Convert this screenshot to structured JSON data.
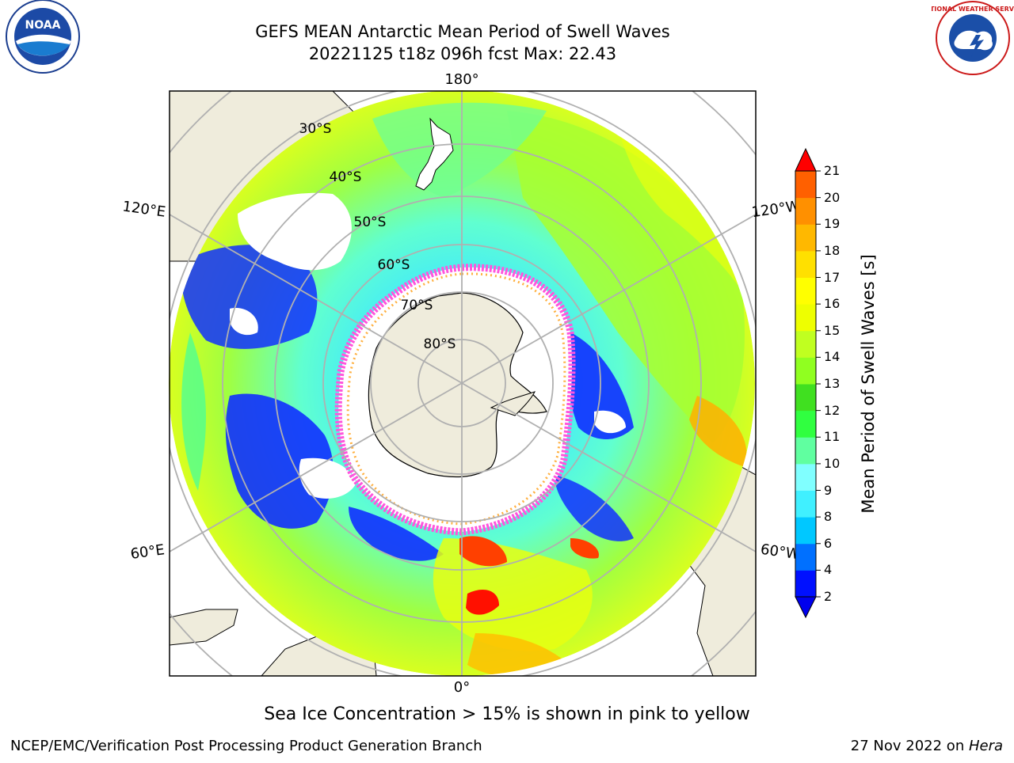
{
  "title": {
    "line1": "GEFS MEAN Antarctic Mean Period of Swell Waves",
    "line2": "20221125 t18z 096h fcst   Max: 22.43"
  },
  "logos": {
    "left": {
      "icon": "noaa-logo",
      "text": "NOAA"
    },
    "right": {
      "icon": "national-weather-service-logo",
      "text": "NATIONAL WEATHER SERVICE"
    }
  },
  "map": {
    "projection": "south-polar-stereographic",
    "longitude_labels": {
      "top": "180°",
      "bottom": "0°",
      "left_upper": "120°E",
      "left_lower": "60°E",
      "right_upper": "120°W",
      "right_lower": "60°W"
    },
    "latitude_labels": [
      "30°S",
      "40°S",
      "50°S",
      "60°S",
      "70°S",
      "80°S"
    ],
    "colors": {
      "land": "#efecdc",
      "ice_white": "#ffffff",
      "grid": "#b0b0b0",
      "sea_ice_pink": "#ff55dd",
      "sea_ice_orange": "#ffb040"
    }
  },
  "colorbar": {
    "title": "Mean Period of Swell Waves [s]",
    "ticks": [
      "2",
      "4",
      "6",
      "8",
      "9",
      "10",
      "11",
      "12",
      "13",
      "14",
      "15",
      "16",
      "17",
      "18",
      "19",
      "20",
      "21"
    ],
    "colors": [
      "#0010ff",
      "#0070ff",
      "#00c8ff",
      "#40f0ff",
      "#80ffff",
      "#60ffa0",
      "#30ff40",
      "#40e020",
      "#90ff20",
      "#c0ff20",
      "#eeff00",
      "#ffff00",
      "#ffe000",
      "#ffb800",
      "#ff9000",
      "#ff6000",
      "#ff3000"
    ],
    "under_color": "#0000ee",
    "over_color": "#ff0000"
  },
  "caption": "Sea Ice Concentration > 15% is shown in pink to yellow",
  "footer": {
    "left": "NCEP/EMC/Verification Post Processing Product Generation Branch",
    "right_date": "27 Nov 2022 on ",
    "right_host": "Hera"
  }
}
